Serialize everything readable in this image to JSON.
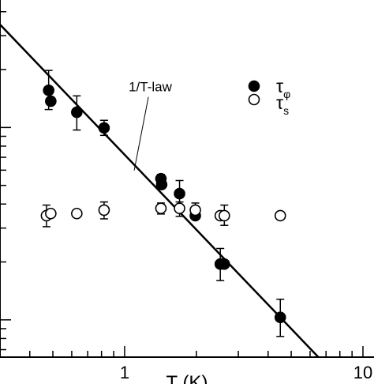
{
  "chart_data": {
    "type": "scatter",
    "xlabel": "T (K)",
    "x_scale": "log",
    "y_scale": "log",
    "xlim": [
      0.3,
      10
    ],
    "ylim": [
      0.64,
      46
    ],
    "x_ticks": [
      {
        "value": 1,
        "label": "1"
      },
      {
        "value": 10,
        "label": "10"
      }
    ],
    "legend_position": "top-right",
    "annotation": {
      "text": "1/T-law",
      "x": 1.04,
      "y": 15.4
    },
    "series": [
      {
        "name": "τφ",
        "name_main": "τ",
        "name_sub": "φ",
        "marker": "filled-circle",
        "points": [
          {
            "x": 0.48,
            "y": 15.6,
            "err": [
              12.4,
              19.8
            ]
          },
          {
            "x": 0.49,
            "y": 13.7,
            "err": null
          },
          {
            "x": 0.63,
            "y": 12.0,
            "err": [
              9.7,
              14.6
            ]
          },
          {
            "x": 0.82,
            "y": 9.95,
            "err": [
              9.1,
              10.9
            ]
          },
          {
            "x": 1.42,
            "y": 5.42,
            "err": [
              5.1,
              5.7
            ]
          },
          {
            "x": 1.43,
            "y": 5.05,
            "err": null
          },
          {
            "x": 1.7,
            "y": 4.53,
            "err": [
              3.8,
              5.3
            ]
          },
          {
            "x": 1.98,
            "y": 3.48,
            "err": null
          },
          {
            "x": 2.52,
            "y": 1.95,
            "err": [
              1.6,
              2.35
            ]
          },
          {
            "x": 2.62,
            "y": 1.95,
            "err": null
          },
          {
            "x": 4.5,
            "y": 1.03,
            "err": [
              0.82,
              1.28
            ]
          }
        ]
      },
      {
        "name": "τs",
        "name_main": "τ",
        "name_sub": "s",
        "marker": "open-circle",
        "points": [
          {
            "x": 0.47,
            "y": 3.48,
            "err": [
              3.05,
              3.95
            ]
          },
          {
            "x": 0.49,
            "y": 3.57,
            "err": null
          },
          {
            "x": 0.63,
            "y": 3.57,
            "err": null
          },
          {
            "x": 0.82,
            "y": 3.72,
            "err": [
              3.35,
              4.1
            ]
          },
          {
            "x": 1.42,
            "y": 3.8,
            "err": [
              3.55,
              4.05
            ]
          },
          {
            "x": 1.7,
            "y": 3.8,
            "err": [
              3.45,
              4.1
            ]
          },
          {
            "x": 1.98,
            "y": 3.72,
            "err": [
              3.4,
              4.05
            ]
          },
          {
            "x": 2.52,
            "y": 3.48,
            "err": null
          },
          {
            "x": 2.62,
            "y": 3.48,
            "err": [
              3.1,
              3.95
            ]
          },
          {
            "x": 4.5,
            "y": 3.48,
            "err": null
          }
        ]
      }
    ],
    "fit_line": {
      "label": "1/T-law",
      "points": [
        [
          0.3,
          34.3
        ],
        [
          6.5,
          0.64
        ]
      ]
    }
  }
}
